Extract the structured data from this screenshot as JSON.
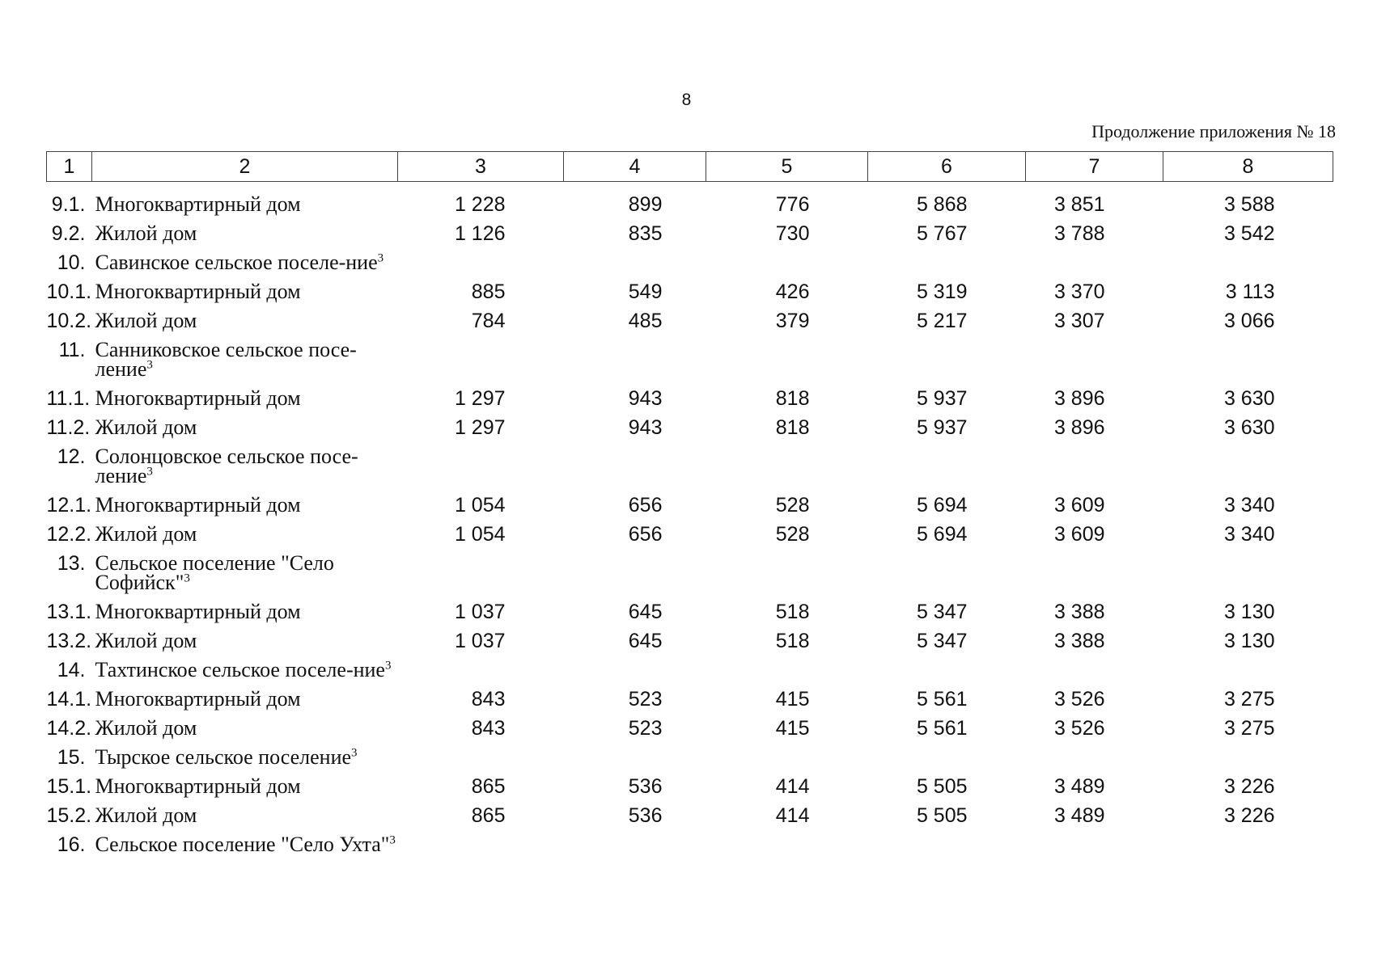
{
  "page_number": "8",
  "caption": "Продолжение приложения № 18",
  "columns": [
    "1",
    "2",
    "3",
    "4",
    "5",
    "6",
    "7",
    "8"
  ],
  "rows": [
    {
      "num": "9.1.",
      "name": "Многоквартирный дом",
      "v3": "1 228",
      "v4": "899",
      "v5": "776",
      "v6": "5 868",
      "v7": "3 851",
      "v8": "3 588"
    },
    {
      "num": "9.2.",
      "name": "Жилой дом",
      "v3": "1 126",
      "v4": "835",
      "v5": "730",
      "v6": "5 767",
      "v7": "3 788",
      "v8": "3 542"
    },
    {
      "num": "10.",
      "name": "Савинское сельское поселе-ние",
      "sup": "3"
    },
    {
      "num": "10.1.",
      "name": "Многоквартирный дом",
      "v3": "885",
      "v4": "549",
      "v5": "426",
      "v6": "5 319",
      "v7": "3 370",
      "v8": "3 113"
    },
    {
      "num": "10.2.",
      "name": "Жилой дом",
      "v3": "784",
      "v4": "485",
      "v5": "379",
      "v6": "5 217",
      "v7": "3 307",
      "v8": "3 066"
    },
    {
      "num": "11.",
      "name": "Санниковское сельское посе-ление",
      "sup": "3"
    },
    {
      "num": "11.1.",
      "name": "Многоквартирный дом",
      "v3": "1 297",
      "v4": "943",
      "v5": "818",
      "v6": "5 937",
      "v7": "3 896",
      "v8": "3 630"
    },
    {
      "num": "11.2.",
      "name": "Жилой дом",
      "v3": "1 297",
      "v4": "943",
      "v5": "818",
      "v6": "5 937",
      "v7": "3 896",
      "v8": "3 630"
    },
    {
      "num": "12.",
      "name": "Солонцовское сельское посе-ление",
      "sup": "3"
    },
    {
      "num": "12.1.",
      "name": "Многоквартирный дом",
      "v3": "1 054",
      "v4": "656",
      "v5": "528",
      "v6": "5 694",
      "v7": "3 609",
      "v8": "3 340"
    },
    {
      "num": "12.2.",
      "name": "Жилой дом",
      "v3": "1 054",
      "v4": "656",
      "v5": "528",
      "v6": "5 694",
      "v7": "3 609",
      "v8": "3 340"
    },
    {
      "num": "13.",
      "name": "Сельское поселение \"Село Софийск\"",
      "sup": "3"
    },
    {
      "num": "13.1.",
      "name": "Многоквартирный дом",
      "v3": "1 037",
      "v4": "645",
      "v5": "518",
      "v6": "5 347",
      "v7": "3 388",
      "v8": "3 130"
    },
    {
      "num": "13.2.",
      "name": "Жилой дом",
      "v3": "1 037",
      "v4": "645",
      "v5": "518",
      "v6": "5 347",
      "v7": "3 388",
      "v8": "3 130"
    },
    {
      "num": "14.",
      "name": "Тахтинское сельское поселе-ние",
      "sup": "3"
    },
    {
      "num": "14.1.",
      "name": "Многоквартирный дом",
      "v3": "843",
      "v4": "523",
      "v5": "415",
      "v6": "5 561",
      "v7": "3 526",
      "v8": "3 275"
    },
    {
      "num": "14.2.",
      "name": "Жилой дом",
      "v3": "843",
      "v4": "523",
      "v5": "415",
      "v6": "5 561",
      "v7": "3 526",
      "v8": "3 275"
    },
    {
      "num": "15.",
      "name": "Тырское сельское поселение",
      "sup": "3"
    },
    {
      "num": "15.1.",
      "name": "Многоквартирный дом",
      "v3": "865",
      "v4": "536",
      "v5": "414",
      "v6": "5 505",
      "v7": "3 489",
      "v8": "3 226"
    },
    {
      "num": "15.2.",
      "name": "Жилой дом",
      "v3": "865",
      "v4": "536",
      "v5": "414",
      "v6": "5 505",
      "v7": "3 489",
      "v8": "3 226"
    },
    {
      "num": "16.",
      "name": "Сельское поселение \"Село Ухта\"",
      "sup": "3"
    }
  ]
}
